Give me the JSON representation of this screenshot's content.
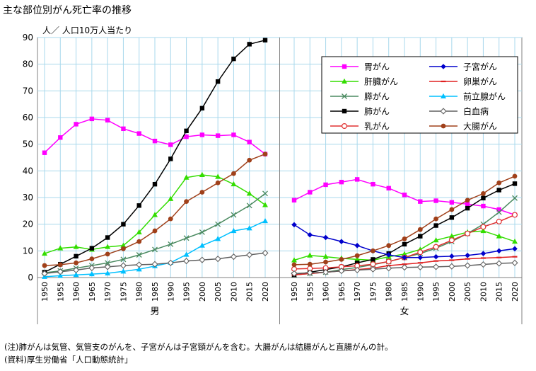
{
  "title": "主な部位別がん死亡率の推移",
  "notes": [
    "(注)肺がんは気管、気管支のがんを、子宮がんは子宮頸がんを含む。大腸がんは結腸がんと直腸がんの計。",
    "(資料)厚生労働省「人口動態統計」"
  ],
  "chart_data": {
    "type": "line",
    "title": "主な部位別がん死亡率の推移",
    "ylabel": "人／ 人口10万人当たり",
    "ylim": [
      0,
      90
    ],
    "yticks": [
      0,
      10,
      20,
      30,
      40,
      50,
      60,
      70,
      80,
      90
    ],
    "grid": true,
    "legend_position": "top-right",
    "x": [
      "1950",
      "1955",
      "1960",
      "1965",
      "1970",
      "1975",
      "1980",
      "1985",
      "1990",
      "1995",
      "2000",
      "2005",
      "2010",
      "2015",
      "2020"
    ],
    "panels": [
      {
        "label": "男",
        "series": [
          {
            "name": "胃がん",
            "color": "#ff00ff",
            "marker": "square",
            "values": [
              46.8,
              52.5,
              57.5,
              59.5,
              59.0,
              55.8,
              54.0,
              51.2,
              49.8,
              52.8,
              53.5,
              53.2,
              53.5,
              50.8,
              46.3
            ]
          },
          {
            "name": "肝臓がん",
            "color": "#33dd00",
            "marker": "triangle",
            "values": [
              9.0,
              11.0,
              11.5,
              10.5,
              11.5,
              12.0,
              17.0,
              23.5,
              29.5,
              37.5,
              38.5,
              37.8,
              35.0,
              31.5,
              27.2
            ]
          },
          {
            "name": "膵がん",
            "color": "#4a8a60",
            "marker": "x",
            "values": [
              1.8,
              2.5,
              3.5,
              4.5,
              5.5,
              6.8,
              8.5,
              10.5,
              12.5,
              14.8,
              17.0,
              20.0,
              23.5,
              27.0,
              31.5
            ]
          },
          {
            "name": "肺がん",
            "color": "#000000",
            "marker": "square",
            "values": [
              2.0,
              5.0,
              8.0,
              11.0,
              15.0,
              20.0,
              27.0,
              35.0,
              44.5,
              55.0,
              63.5,
              73.5,
              82.0,
              87.5,
              89.0
            ]
          },
          {
            "name": "前立腺がん",
            "color": "#00c0ff",
            "marker": "triangle",
            "values": [
              0.3,
              0.7,
              1.0,
              1.3,
              1.6,
              2.3,
              3.1,
              4.3,
              5.6,
              8.6,
              12.0,
              14.5,
              17.5,
              18.5,
              21.2
            ]
          },
          {
            "name": "白血病",
            "color": "#606060",
            "marker": "diamond-open",
            "values": [
              1.5,
              2.2,
              2.8,
              3.6,
              4.0,
              4.5,
              4.8,
              5.0,
              5.5,
              6.2,
              6.6,
              7.0,
              7.8,
              8.5,
              9.2
            ]
          },
          {
            "name": "大腸がん",
            "color": "#a0401a",
            "marker": "circle",
            "values": [
              4.5,
              4.8,
              5.5,
              7.0,
              8.8,
              10.8,
              13.5,
              17.5,
              22.0,
              28.5,
              32.0,
              35.5,
              39.0,
              44.0,
              46.3
            ]
          }
        ]
      },
      {
        "label": "女",
        "series": [
          {
            "name": "胃がん",
            "color": "#ff00ff",
            "marker": "square",
            "values": [
              29.0,
              32.0,
              34.8,
              35.8,
              36.8,
              35.0,
              33.5,
              31.0,
              28.5,
              28.8,
              28.2,
              27.5,
              26.8,
              25.5,
              23.5
            ]
          },
          {
            "name": "肝臓がん",
            "color": "#33dd00",
            "marker": "triangle",
            "values": [
              6.5,
              8.3,
              7.8,
              7.2,
              6.8,
              6.5,
              7.8,
              8.8,
              10.5,
              14.0,
              15.5,
              17.0,
              17.5,
              15.5,
              13.5
            ]
          },
          {
            "name": "膵がん",
            "color": "#4a8a60",
            "marker": "x",
            "values": [
              1.0,
              1.5,
              2.0,
              3.0,
              3.8,
              4.8,
              6.0,
              7.5,
              9.0,
              11.0,
              13.5,
              16.5,
              20.0,
              24.5,
              29.8
            ]
          },
          {
            "name": "肺がん",
            "color": "#000000",
            "marker": "square",
            "values": [
              1.0,
              2.0,
              3.0,
              4.0,
              5.5,
              6.8,
              9.0,
              12.5,
              15.5,
              19.5,
              22.5,
              26.0,
              29.8,
              32.8,
              35.2
            ]
          },
          {
            "name": "乳がん",
            "color": "#e03030",
            "marker": "circle-open",
            "values": [
              3.2,
              3.4,
              3.6,
              4.0,
              4.4,
              5.0,
              6.0,
              7.5,
              9.5,
              11.5,
              14.0,
              16.5,
              19.0,
              21.0,
              23.5
            ]
          },
          {
            "name": "子宮がん",
            "color": "#0000cc",
            "marker": "diamond",
            "values": [
              19.8,
              16.0,
              15.0,
              13.5,
              12.0,
              10.0,
              8.5,
              7.5,
              7.5,
              7.8,
              8.0,
              8.3,
              9.0,
              10.0,
              10.8
            ]
          },
          {
            "name": "卵巣がん",
            "color": "#e02020",
            "marker": "dash",
            "values": [
              1.0,
              1.5,
              2.0,
              2.5,
              3.0,
              3.5,
              4.5,
              5.0,
              5.5,
              6.2,
              6.5,
              7.0,
              7.3,
              7.5,
              7.8
            ]
          },
          {
            "name": "白血病",
            "color": "#606060",
            "marker": "diamond-open",
            "values": [
              1.5,
              1.8,
              2.0,
              2.5,
              2.8,
              3.1,
              3.5,
              3.8,
              3.9,
              4.0,
              4.2,
              4.5,
              4.9,
              5.3,
              5.5
            ]
          },
          {
            "name": "大腸がん",
            "color": "#a0401a",
            "marker": "circle",
            "values": [
              4.8,
              5.0,
              5.8,
              6.8,
              8.2,
              10.0,
              12.0,
              14.5,
              18.0,
              22.0,
              25.5,
              29.0,
              31.5,
              35.5,
              38.0
            ]
          }
        ]
      }
    ],
    "legend": [
      {
        "name": "胃がん",
        "color": "#ff00ff",
        "marker": "square"
      },
      {
        "name": "肝臓がん",
        "color": "#33dd00",
        "marker": "triangle"
      },
      {
        "name": "膵がん",
        "color": "#4a8a60",
        "marker": "x"
      },
      {
        "name": "肺がん",
        "color": "#000000",
        "marker": "square"
      },
      {
        "name": "乳がん",
        "color": "#e03030",
        "marker": "circle-open"
      },
      {
        "name": "子宮がん",
        "color": "#0000cc",
        "marker": "diamond"
      },
      {
        "name": "卵巣がん",
        "color": "#e02020",
        "marker": "dash"
      },
      {
        "name": "前立腺がん",
        "color": "#00c0ff",
        "marker": "triangle"
      },
      {
        "name": "白血病",
        "color": "#606060",
        "marker": "diamond-open"
      },
      {
        "name": "大腸がん",
        "color": "#a0401a",
        "marker": "circle"
      }
    ]
  }
}
